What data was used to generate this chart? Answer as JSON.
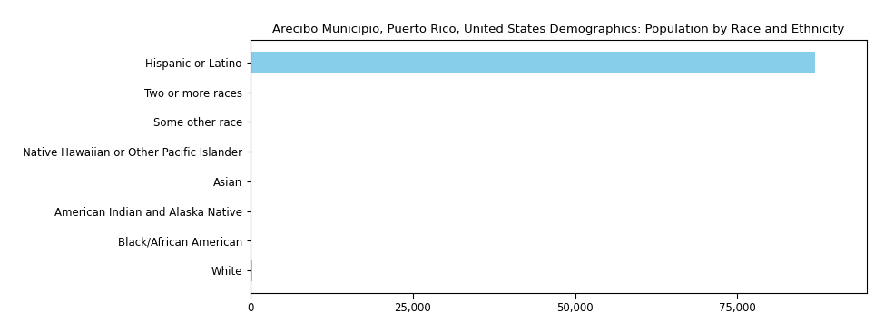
{
  "title": "Arecibo Municipio, Puerto Rico, United States Demographics: Population by Race and Ethnicity",
  "categories": [
    "Hispanic or Latino",
    "Two or more races",
    "Some other race",
    "Native Hawaiian or Other Pacific Islander",
    "Asian",
    "American Indian and Alaska Native",
    "Black/African American",
    "White"
  ],
  "values": [
    87000,
    200,
    150,
    50,
    100,
    80,
    120,
    300
  ],
  "bar_color": "#87CEEB",
  "xlim": [
    0,
    95000
  ],
  "xticks": [
    0,
    25000,
    50000,
    75000
  ],
  "xtick_labels": [
    "0",
    "25,000",
    "50,000",
    "75,000"
  ],
  "background_color": "#ffffff",
  "title_fontsize": 9.5,
  "tick_fontsize": 8.5,
  "label_fontsize": 8.5,
  "bar_height": 0.75
}
